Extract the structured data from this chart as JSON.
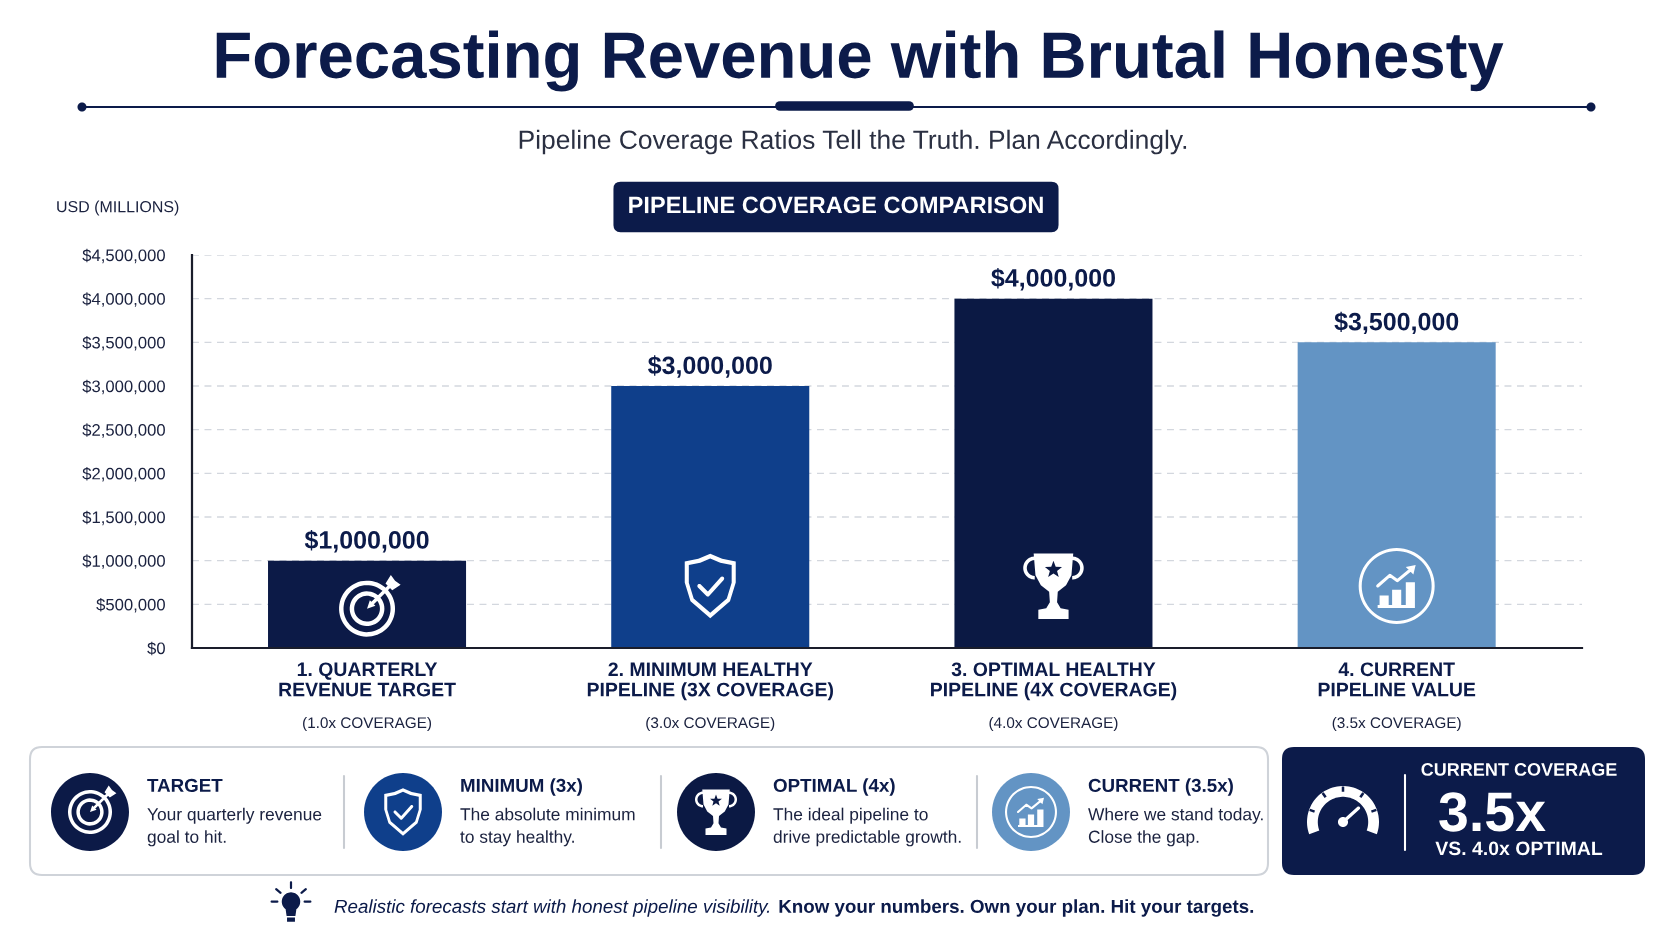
{
  "chart_data": {
    "type": "bar",
    "title": "Forecasting Revenue with Brutal Honesty",
    "subtitle": "Pipeline Coverage Ratios Tell the Truth. Plan Accordingly.",
    "ylabel": "USD (MILLIONS)",
    "categories": [
      "1. QUARTERLY\nREVENUE TARGET\n(1.0x COVERAGE)",
      "2. MINIMUM HEALTHY\nPIPELINE (3X COVERAGE)\n(3.0x COVERAGE)",
      "3. OPTIMAL HEALTHY\nPIPELINE (4X COVERAGE)\n(4.0x COVERAGE)",
      "4. CURRENT\nPIPELINE VALUE\n(3.5x COVERAGE)"
    ],
    "values": [
      1000000,
      3000000,
      4000000,
      3500000
    ],
    "colors": [
      "#0c1a47",
      "#0f3f8b",
      "#0b1944",
      "#6394c4"
    ],
    "value_labels": [
      "$1,000,000",
      "$3,000,000",
      "$4,000,000",
      "$3,500,000"
    ],
    "ylim": [
      0,
      4500000
    ],
    "yticks": [
      {
        "value": 0,
        "label": "$0"
      },
      {
        "value": 500000,
        "label": "$500,000"
      },
      {
        "value": 1000000,
        "label": "$1,000,000"
      },
      {
        "value": 1500000,
        "label": "$1,500,000"
      },
      {
        "value": 2000000,
        "label": "$2,000,000"
      },
      {
        "value": 2500000,
        "label": "$2,500,000"
      },
      {
        "value": 3000000,
        "label": "$3,000,000"
      },
      {
        "value": 3500000,
        "label": "$3,500,000"
      },
      {
        "value": 4000000,
        "label": "$4,000,000"
      },
      {
        "value": 4500000,
        "label": "$4,500,000"
      }
    ],
    "grid": "y",
    "annotations": [
      "PIPELINE COVERAGE COMPARISON",
      "TARGET",
      "Your quarterly revenue\ngoal to hit.",
      "MINIMUM (3x)",
      "The absolute minimum\nto stay healthy.",
      "OPTIMAL (4x)",
      "The ideal pipeline to\ndrive predictable growth.",
      "CURRENT (3.5x)",
      "Where we stand today.\nClose the gap.",
      "CURRENT COVERAGE",
      "3.5x",
      "VS. 4.0x OPTIMAL",
      "Realistic forecasts start with honest pipeline visibility.",
      "Know your numbers. Own your plan. Hit your targets."
    ]
  }
}
